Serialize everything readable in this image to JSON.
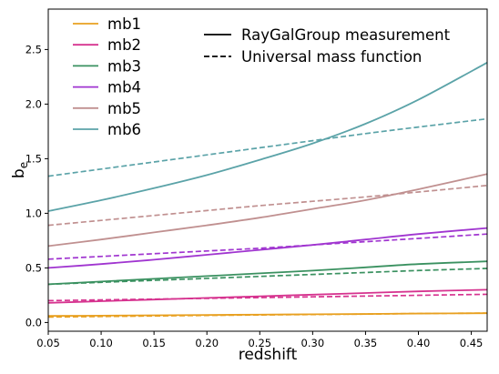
{
  "chart_data": {
    "type": "line",
    "xlabel": "redshift",
    "ylabel_main": "b",
    "ylabel_sub": "e",
    "xlim": [
      0.05,
      0.465
    ],
    "ylim": [
      -0.08,
      2.87
    ],
    "xticks": [
      0.05,
      0.1,
      0.15,
      0.2,
      0.25,
      0.3,
      0.35,
      0.4,
      0.45
    ],
    "xtick_labels": [
      "0.05",
      "0.10",
      "0.15",
      "0.20",
      "0.25",
      "0.30",
      "0.35",
      "0.40",
      "0.45"
    ],
    "yticks": [
      0.0,
      0.5,
      1.0,
      1.5,
      2.0,
      2.5
    ],
    "ytick_labels": [
      "0.0",
      "0.5",
      "1.0",
      "1.5",
      "2.0",
      "2.5"
    ],
    "grid": false,
    "x": [
      0.05,
      0.1,
      0.15,
      0.2,
      0.25,
      0.3,
      0.35,
      0.4,
      0.465
    ],
    "series": [
      {
        "name": "mb1",
        "color": "#e8a020",
        "measurement": [
          0.06,
          0.063,
          0.066,
          0.069,
          0.072,
          0.075,
          0.078,
          0.082,
          0.085
        ],
        "universal": [
          0.05,
          0.055,
          0.06,
          0.065,
          0.069,
          0.073,
          0.077,
          0.082,
          0.086
        ]
      },
      {
        "name": "mb2",
        "color": "#d6338f",
        "measurement": [
          0.18,
          0.195,
          0.21,
          0.225,
          0.24,
          0.255,
          0.27,
          0.285,
          0.3
        ],
        "universal": [
          0.2,
          0.207,
          0.214,
          0.221,
          0.228,
          0.235,
          0.242,
          0.249,
          0.258
        ]
      },
      {
        "name": "mb3",
        "color": "#3a9160",
        "measurement": [
          0.35,
          0.375,
          0.4,
          0.425,
          0.45,
          0.475,
          0.505,
          0.535,
          0.56
        ],
        "universal": [
          0.35,
          0.368,
          0.386,
          0.404,
          0.422,
          0.44,
          0.458,
          0.476,
          0.495
        ]
      },
      {
        "name": "mb4",
        "color": "#a035d0",
        "measurement": [
          0.5,
          0.535,
          0.575,
          0.62,
          0.665,
          0.71,
          0.76,
          0.81,
          0.865
        ],
        "universal": [
          0.58,
          0.605,
          0.63,
          0.655,
          0.68,
          0.71,
          0.74,
          0.77,
          0.81
        ]
      },
      {
        "name": "mb5",
        "color": "#c09090",
        "measurement": [
          0.7,
          0.76,
          0.825,
          0.89,
          0.96,
          1.04,
          1.12,
          1.22,
          1.36
        ],
        "universal": [
          0.89,
          0.935,
          0.98,
          1.025,
          1.07,
          1.11,
          1.15,
          1.195,
          1.255
        ]
      },
      {
        "name": "mb6",
        "color": "#5ba3a8",
        "measurement": [
          1.02,
          1.12,
          1.23,
          1.35,
          1.49,
          1.64,
          1.82,
          2.04,
          2.38
        ],
        "universal": [
          1.34,
          1.405,
          1.47,
          1.535,
          1.6,
          1.665,
          1.73,
          1.79,
          1.865
        ]
      }
    ],
    "style_legend": [
      {
        "label": "RayGalGroup measurement",
        "dash": "solid"
      },
      {
        "label": "Universal mass function",
        "dash": "dashed"
      }
    ],
    "legend_placement": "top-left and top-center"
  }
}
